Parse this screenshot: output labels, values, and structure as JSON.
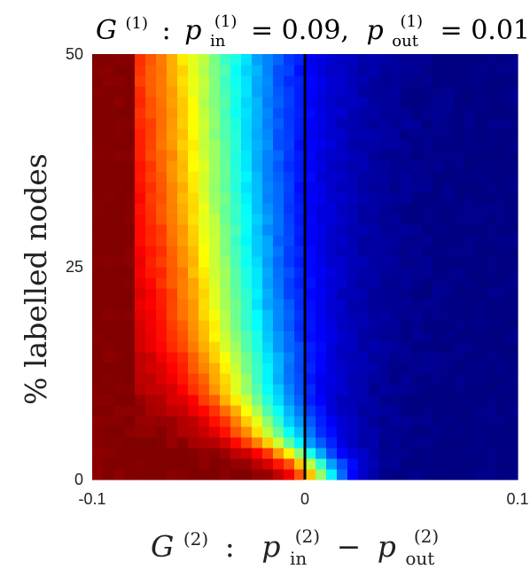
{
  "chart_data": {
    "type": "heatmap",
    "title": {
      "graph": "G",
      "graph_sup": "(1)",
      "colon": ":",
      "p": "p",
      "p_sub_in": "in",
      "p_sup": "(1)",
      "eq_in": "= 0.09,",
      "p_sub_out": "out",
      "eq_out": "= 0.01"
    },
    "xlabel": {
      "graph": "G",
      "graph_sup": "(2)",
      "colon": ":",
      "p": "p",
      "p_sub_in": "in",
      "p_sup": "(2)",
      "minus": "−",
      "p_sub_out": "out"
    },
    "ylabel": "% labelled nodes",
    "x_range": [
      -0.1,
      0.1
    ],
    "y_range": [
      0,
      50
    ],
    "x_ticks": [
      {
        "value": -0.1,
        "label": "-0.1"
      },
      {
        "value": 0,
        "label": "0"
      },
      {
        "value": 0.1,
        "label": "0.1"
      }
    ],
    "y_ticks": [
      {
        "value": 0,
        "label": "0"
      },
      {
        "value": 25,
        "label": "25"
      },
      {
        "value": 50,
        "label": "50"
      }
    ],
    "grid": {
      "columns": 40,
      "rows": 40
    },
    "colormap": "jet",
    "color_range": [
      0,
      1
    ],
    "reference_line": {
      "x": 0,
      "color": "#000000"
    },
    "value_model": {
      "description_of_surface": "value(x, y) = 1 / (1 + exp((x - threshold(y)) / width(y)))",
      "threshold_points": [
        {
          "y": 0,
          "threshold": 0.01
        },
        {
          "y": 2,
          "threshold": 0.004
        },
        {
          "y": 5,
          "threshold": -0.012
        },
        {
          "y": 10,
          "threshold": -0.025
        },
        {
          "y": 20,
          "threshold": -0.034
        },
        {
          "y": 35,
          "threshold": -0.04
        },
        {
          "y": 50,
          "threshold": -0.043
        }
      ],
      "width_points": [
        {
          "y": 0,
          "width": 0.007
        },
        {
          "y": 5,
          "width": 0.013
        },
        {
          "y": 15,
          "width": 0.019
        },
        {
          "y": 50,
          "width": 0.023
        }
      ],
      "saturate_below_x": -0.079
    }
  }
}
